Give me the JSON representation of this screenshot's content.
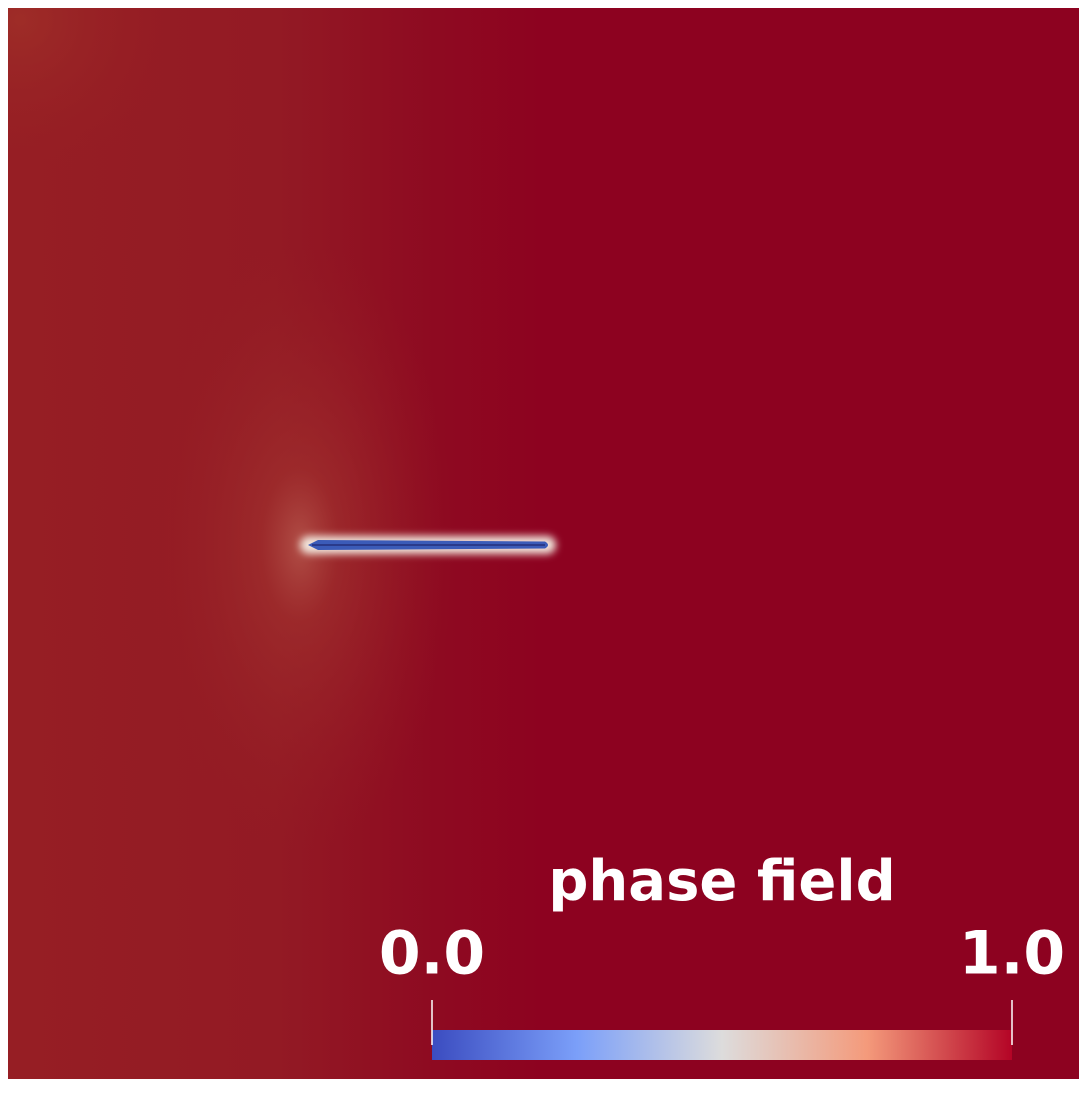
{
  "colorbar": {
    "title": "phase field",
    "ticks": [
      {
        "value": 0,
        "label": "0.0"
      },
      {
        "value": 1,
        "label": "1.0"
      }
    ]
  }
}
